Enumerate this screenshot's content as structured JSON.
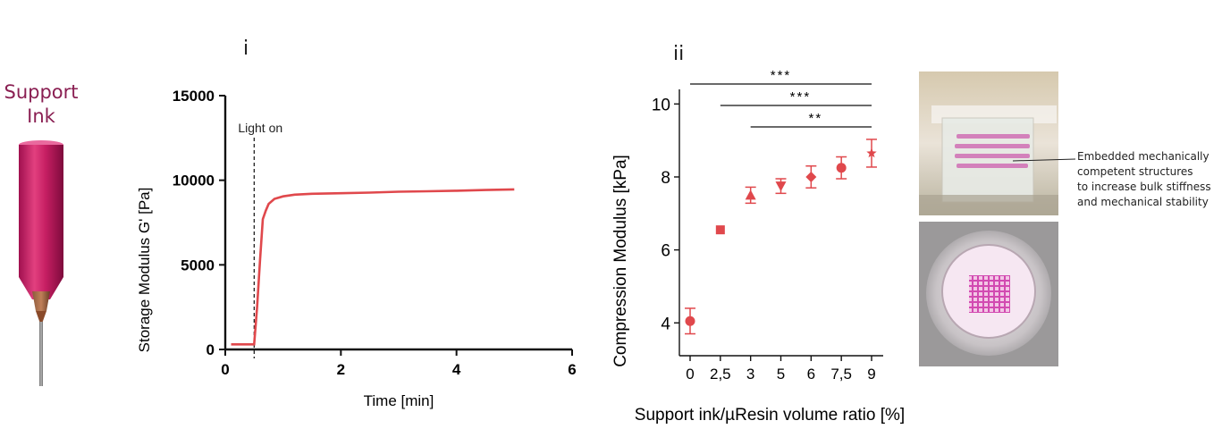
{
  "support_ink": {
    "title_line1": "Support",
    "title_line2": "Ink"
  },
  "panels": {
    "first": "i",
    "second": "ii"
  },
  "chart_data": [
    {
      "type": "line",
      "xlabel": "Time [min]",
      "ylabel": "Storage Modulus G' [Pa]",
      "xlim": [
        0,
        6
      ],
      "ylim": [
        0,
        15000
      ],
      "x_ticks": [
        "0",
        "2",
        "4",
        "6"
      ],
      "y_ticks": [
        "0",
        "5000",
        "10000",
        "15000"
      ],
      "annotation": "Light on",
      "annotation_x": 0.5,
      "color": "#e0484c",
      "series": [
        {
          "x": [
            0.1,
            0.5,
            0.55,
            0.6,
            0.65,
            0.7,
            0.75,
            0.85,
            1.0,
            1.2,
            1.5,
            2.0,
            2.5,
            3.0,
            3.5,
            4.0,
            4.5,
            5.0
          ],
          "y": [
            300,
            300,
            2500,
            5200,
            7700,
            8200,
            8600,
            8900,
            9050,
            9150,
            9200,
            9230,
            9270,
            9320,
            9350,
            9380,
            9420,
            9460
          ]
        }
      ]
    },
    {
      "type": "scatter",
      "xlabel": "Support ink/µResin volume ratio [%]",
      "ylabel": "Compression Modulus [kPa]",
      "ylim": [
        3.1,
        10.4
      ],
      "y_ticks": [
        "4",
        "6",
        "8",
        "10"
      ],
      "categories": [
        "0",
        "2,5",
        "3",
        "5",
        "6",
        "7,5",
        "9"
      ],
      "values": [
        4.05,
        6.55,
        7.5,
        7.75,
        8.0,
        8.25,
        8.65
      ],
      "errors": [
        0.35,
        0.0,
        0.22,
        0.2,
        0.3,
        0.3,
        0.38
      ],
      "markers": [
        "circle",
        "square",
        "triangle-up",
        "triangle-down",
        "diamond",
        "circle",
        "star"
      ],
      "color": "#e0484c",
      "significance": [
        {
          "from": 0,
          "to": 6,
          "label": "***"
        },
        {
          "from": 1,
          "to": 6,
          "label": "***"
        },
        {
          "from": 2,
          "to": 6,
          "label": "**"
        }
      ]
    }
  ],
  "annotation_text": {
    "line1": "Embedded mechanically",
    "line2": "competent structures",
    "line3": "to increase  bulk stiffness",
    "line4": "and mechanical stability"
  }
}
